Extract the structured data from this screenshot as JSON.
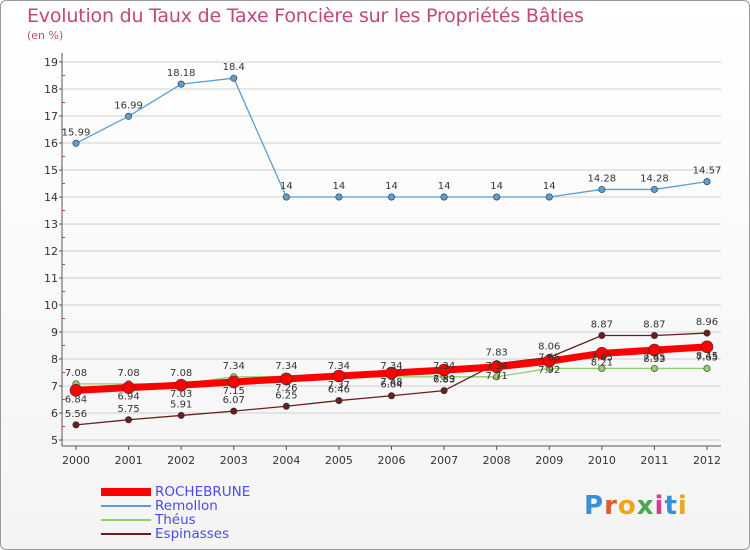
{
  "header": {
    "title": "Evolution du Taux de Taxe Foncière sur les Propriétés Bâties",
    "subtitle": "(en %)"
  },
  "logo": {
    "text": "Proxiti",
    "letter_colors": [
      "#3a8fd6",
      "#e25a2a",
      "#f2a51a",
      "#4aa84a",
      "#d93b8a",
      "#3a8fd6",
      "#f2a51a"
    ]
  },
  "chart_data": {
    "type": "line",
    "title": "Evolution du Taux de Taxe Foncière sur les Propriétés Bâties",
    "ylabel": "(en %)",
    "xlabel": "",
    "ylim": [
      5,
      19
    ],
    "yticks": [
      5,
      6,
      7,
      8,
      9,
      10,
      11,
      12,
      13,
      14,
      15,
      16,
      17,
      18,
      19
    ],
    "categories": [
      "2000",
      "2001",
      "2002",
      "2003",
      "2004",
      "2005",
      "2006",
      "2007",
      "2008",
      "2009",
      "2010",
      "2011",
      "2012"
    ],
    "grid": true,
    "legend": "bottom-left",
    "series": [
      {
        "name": "Remollon",
        "color": "#5a9fd4",
        "values": [
          15.99,
          16.99,
          18.18,
          18.4,
          14,
          14,
          14,
          14,
          14,
          14,
          14.28,
          14.28,
          14.57
        ],
        "labels": [
          "15.99",
          "16.99",
          "18.18",
          "18.4",
          "14",
          "14",
          "14",
          "14",
          "14",
          "14",
          "14.28",
          "14.28",
          "14.57"
        ]
      },
      {
        "name": "Théus",
        "color": "#8fd16a",
        "values": [
          7.08,
          7.08,
          7.08,
          7.34,
          7.34,
          7.34,
          7.34,
          7.34,
          7.34,
          7.65,
          7.65,
          7.65,
          7.65
        ],
        "labels": [
          "7.08",
          "7.08",
          "7.08",
          "7.34",
          "7.34",
          "7.34",
          "7.34",
          "7.34",
          "7.34",
          "7.65",
          "7.65",
          "7.65",
          "7.65"
        ]
      },
      {
        "name": "Espinasses",
        "color": "#6b1e1e",
        "values": [
          5.56,
          5.75,
          5.91,
          6.07,
          6.25,
          6.46,
          6.64,
          6.83,
          7.83,
          8.06,
          8.87,
          8.87,
          8.96
        ],
        "labels": [
          "5.56",
          "5.75",
          "5.91",
          "6.07",
          "6.25",
          "6.46",
          "6.64",
          "6.83",
          "7.83",
          "8.06",
          "8.87",
          "8.87",
          "8.96"
        ]
      },
      {
        "name": "ROCHEBRUNE",
        "color": "#ff0000",
        "values": [
          6.84,
          6.94,
          7.03,
          7.15,
          7.26,
          7.37,
          7.48,
          7.59,
          7.71,
          7.92,
          8.21,
          8.33,
          8.45
        ],
        "labels": [
          "6.84",
          "6.94",
          "7.03",
          "7.15",
          "7.26",
          "7.37",
          "7.48",
          "7.59",
          "7.71",
          "7.92",
          "8.21",
          "8.33",
          "8.45"
        ]
      }
    ],
    "legend_order": [
      "ROCHEBRUNE",
      "Remollon",
      "Théus",
      "Espinasses"
    ]
  }
}
